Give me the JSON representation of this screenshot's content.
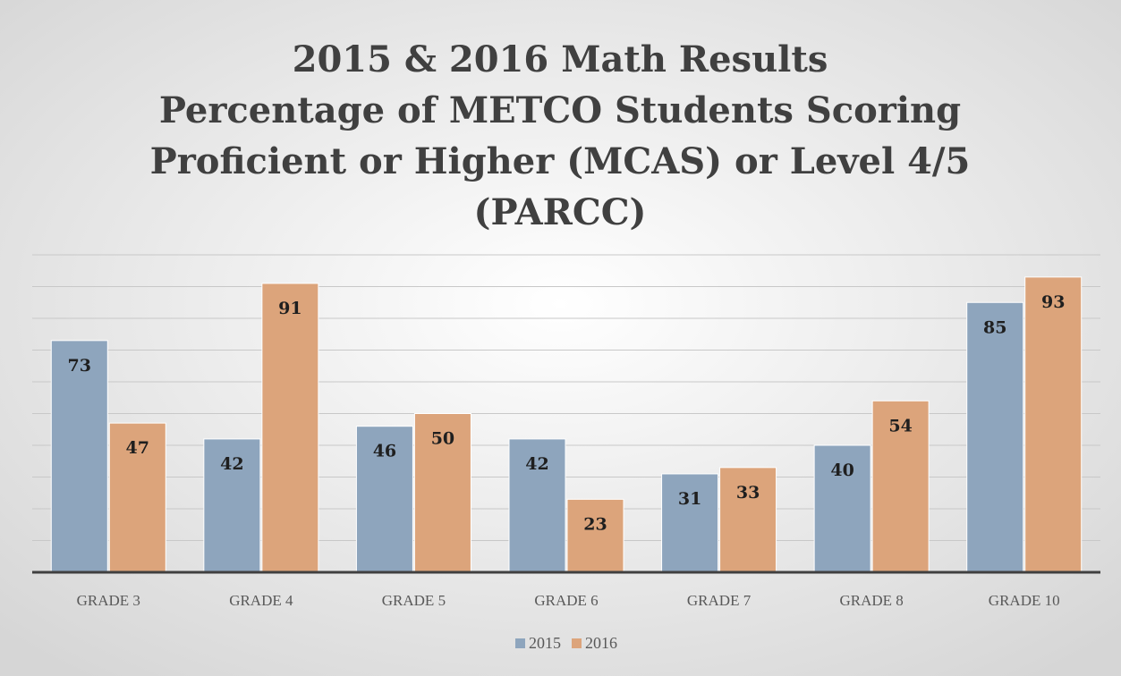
{
  "chart_data": {
    "type": "bar",
    "title": [
      "2015 & 2016 Math Results",
      "Percentage of METCO Students Scoring",
      "Proficient or Higher (MCAS) or Level 4/5",
      "(PARCC)"
    ],
    "categories": [
      "GRADE 3",
      "GRADE 4",
      "GRADE 5",
      "GRADE 6",
      "GRADE 7",
      "GRADE 8",
      "GRADE 10"
    ],
    "series": [
      {
        "name": "2015",
        "color": "#8ea5bd",
        "values": [
          73,
          42,
          46,
          42,
          31,
          40,
          85
        ]
      },
      {
        "name": "2016",
        "color": "#dca47b",
        "values": [
          47,
          91,
          50,
          23,
          33,
          54,
          93
        ]
      }
    ],
    "ylim": [
      0,
      100
    ],
    "yticks": [
      0,
      10,
      20,
      30,
      40,
      50,
      60,
      70,
      80,
      90,
      100
    ],
    "grid": true,
    "legend": "bottom"
  }
}
